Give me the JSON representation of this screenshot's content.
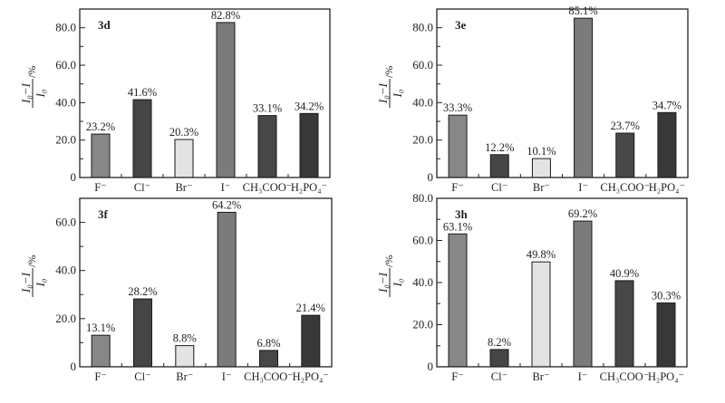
{
  "chart_data": [
    {
      "type": "bar",
      "title": "3d",
      "categories": [
        "F⁻",
        "Cl⁻",
        "Br⁻",
        "I⁻",
        "CH₃COO⁻",
        "H₂PO₄⁻"
      ],
      "values": [
        23.2,
        41.6,
        20.3,
        82.8,
        33.1,
        34.2
      ],
      "value_labels": [
        "23.2%",
        "41.6%",
        "20.3%",
        "82.8%",
        "33.1%",
        "34.2%"
      ],
      "ylim": [
        0,
        90
      ],
      "yticks": [
        0,
        20,
        40,
        60,
        80
      ],
      "ytick_labels": [
        "0",
        "20.0",
        "40.0",
        "60.0",
        "80.0"
      ],
      "ylabel": {
        "numerator": "I₀−I",
        "denominator": "I₀",
        "unit": "/%"
      },
      "xlabel": ""
    },
    {
      "type": "bar",
      "title": "3e",
      "categories": [
        "F⁻",
        "Cl⁻",
        "Br⁻",
        "I⁻",
        "CH₃COO⁻",
        "H₂PO₄⁻"
      ],
      "values": [
        33.3,
        12.2,
        10.1,
        85.1,
        23.7,
        34.7
      ],
      "value_labels": [
        "33.3%",
        "12.2%",
        "10.1%",
        "85.1%",
        "23.7%",
        "34.7%"
      ],
      "ylim": [
        0,
        90
      ],
      "yticks": [
        0,
        20,
        40,
        60,
        80
      ],
      "ytick_labels": [
        "0",
        "20.0",
        "40.0",
        "60.0",
        "80.0"
      ],
      "ylabel": {
        "numerator": "I₀−I",
        "denominator": "I₀",
        "unit": "/%"
      },
      "xlabel": ""
    },
    {
      "type": "bar",
      "title": "3f",
      "categories": [
        "F⁻",
        "Cl⁻",
        "Br⁻",
        "I⁻",
        "CH₃COO⁻",
        "H₂PO₄⁻"
      ],
      "values": [
        13.1,
        28.2,
        8.8,
        64.2,
        6.8,
        21.4
      ],
      "value_labels": [
        "13.1%",
        "28.2%",
        "8.8%",
        "64.2%",
        "6.8%",
        "21.4%"
      ],
      "ylim": [
        0,
        70
      ],
      "yticks": [
        0,
        20,
        40,
        60
      ],
      "ytick_labels": [
        "0",
        "20.0",
        "40.0",
        "60.0"
      ],
      "ylabel": {
        "numerator": "I₀−I",
        "denominator": "I₀",
        "unit": "/%"
      },
      "xlabel": ""
    },
    {
      "type": "bar",
      "title": "3h",
      "categories": [
        "F⁻",
        "Cl⁻",
        "Br⁻",
        "I⁻",
        "CH₃COO⁻",
        "H₂PO₄⁻"
      ],
      "values": [
        63.1,
        8.2,
        49.8,
        69.2,
        40.9,
        30.3
      ],
      "value_labels": [
        "63.1%",
        "8.2%",
        "49.8%",
        "69.2%",
        "40.9%",
        "30.3%"
      ],
      "ylim": [
        0,
        80
      ],
      "yticks": [
        0,
        20,
        40,
        60,
        80
      ],
      "ytick_labels": [
        "0",
        "20.0",
        "40.0",
        "60.0",
        "80.0"
      ],
      "ylabel": {
        "numerator": "I₀−I",
        "denominator": "I₀",
        "unit": "/%"
      },
      "xlabel": ""
    }
  ],
  "bar_colors": [
    "#878787",
    "#454545",
    "#e3e3e3",
    "#7b7b7b",
    "#474747",
    "#383838"
  ],
  "axis_color": "#222222"
}
